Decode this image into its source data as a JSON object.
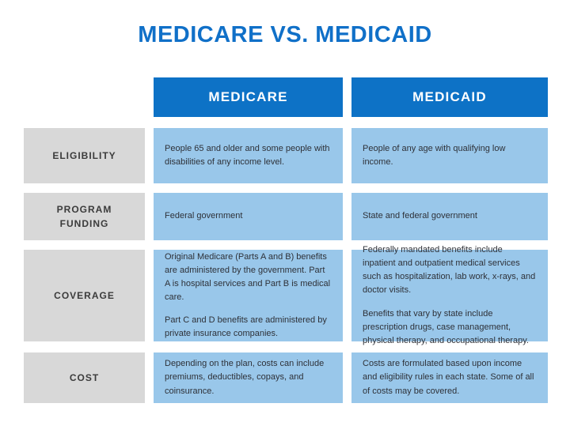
{
  "title": "MEDICARE VS. MEDICAID",
  "colors": {
    "title_blue": "#1070c8",
    "header_blue": "#0d72c6",
    "cell_light_blue": "#99c7ea",
    "label_gray": "#d8d8d8",
    "header_text": "#ffffff",
    "body_text": "#2e3138"
  },
  "columns": {
    "medicare": "MEDICARE",
    "medicaid": "MEDICAID"
  },
  "rows": [
    {
      "label": "ELIGIBILITY",
      "medicare": [
        "People 65 and older and some people with disabilities of any income level."
      ],
      "medicaid": [
        "People of any age with qualifying low income."
      ]
    },
    {
      "label": "PROGRAM FUNDING",
      "medicare": [
        "Federal government"
      ],
      "medicaid": [
        "State and federal government"
      ]
    },
    {
      "label": "COVERAGE",
      "medicare": [
        "Original Medicare (Parts A and B) benefits are administered by the government. Part A is hospital services and Part B is medical care.",
        "Part C and D benefits are administered by private insurance companies."
      ],
      "medicaid": [
        "Federally mandated benefits include inpatient and outpatient medical services such as hospitalization, lab work, x-rays, and doctor visits.",
        "Benefits that vary by state include prescription drugs, case management, physical therapy, and occupational therapy."
      ]
    },
    {
      "label": "COST",
      "medicare": [
        "Depending on the plan, costs can include premiums, deductibles, copays, and coinsurance."
      ],
      "medicaid": [
        "Costs are formulated based upon income and eligibility rules in each state. Some of all of costs may be covered."
      ]
    }
  ]
}
